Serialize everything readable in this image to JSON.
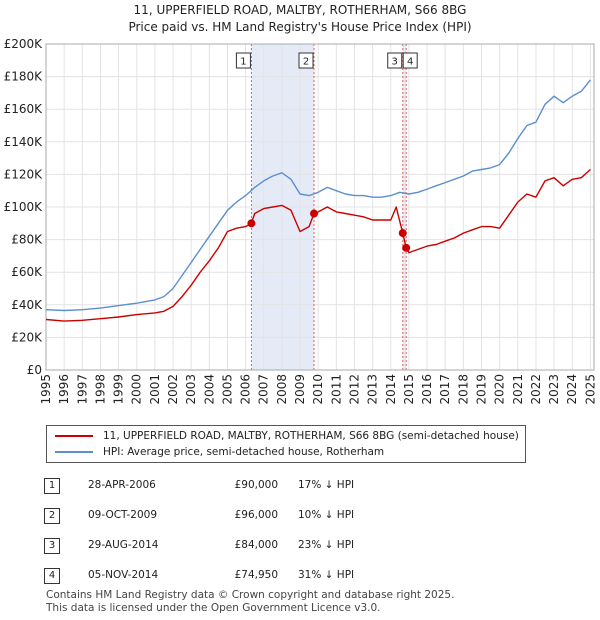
{
  "title_line1": "11, UPPERFIELD ROAD, MALTBY, ROTHERHAM, S66 8BG",
  "title_line2": "Price paid vs. HM Land Registry's House Price Index (HPI)",
  "chart_data": {
    "type": "line",
    "ylim": [
      0,
      200000
    ],
    "xlim": [
      1995,
      2025.2
    ],
    "y_ticks": [
      0,
      20000,
      40000,
      60000,
      80000,
      100000,
      120000,
      140000,
      160000,
      180000,
      200000
    ],
    "y_tick_labels": [
      "£0",
      "£20K",
      "£40K",
      "£60K",
      "£80K",
      "£100K",
      "£120K",
      "£140K",
      "£160K",
      "£180K",
      "£200K"
    ],
    "x_ticks": [
      1995,
      1996,
      1997,
      1998,
      1999,
      2000,
      2001,
      2002,
      2003,
      2004,
      2005,
      2006,
      2007,
      2008,
      2009,
      2010,
      2011,
      2012,
      2013,
      2014,
      2015,
      2016,
      2017,
      2018,
      2019,
      2020,
      2021,
      2022,
      2023,
      2024,
      2025
    ],
    "x_tick_labels": [
      "1995",
      "1996",
      "1997",
      "1998",
      "1999",
      "2000",
      "2001",
      "2002",
      "2003",
      "2004",
      "2005",
      "2006",
      "2007",
      "2008",
      "2009",
      "2010",
      "2011",
      "2012",
      "2013",
      "2014",
      "2015",
      "2016",
      "2017",
      "2018",
      "2019",
      "2020",
      "2021",
      "2022",
      "2023",
      "2024",
      "2025"
    ],
    "grid": true,
    "series": [
      {
        "name": "11, UPPERFIELD ROAD, MALTBY, ROTHERHAM, S66 8BG (semi-detached house)",
        "color": "#cc0000",
        "x": [
          1995.0,
          1996.0,
          1997.0,
          1998.0,
          1999.0,
          2000.0,
          2001.0,
          2001.5,
          2002.0,
          2002.5,
          2003.0,
          2003.5,
          2004.0,
          2004.5,
          2005.0,
          2005.5,
          2006.0,
          2006.32,
          2006.5,
          2007.0,
          2007.5,
          2008.0,
          2008.5,
          2009.0,
          2009.5,
          2009.77,
          2010.0,
          2010.5,
          2011.0,
          2011.5,
          2012.0,
          2012.5,
          2013.0,
          2013.5,
          2014.0,
          2014.3,
          2014.66,
          2014.85,
          2015.0,
          2015.5,
          2016.0,
          2016.5,
          2017.0,
          2017.5,
          2018.0,
          2018.5,
          2019.0,
          2019.5,
          2020.0,
          2020.5,
          2021.0,
          2021.5,
          2022.0,
          2022.5,
          2023.0,
          2023.5,
          2024.0,
          2024.5,
          2025.0
        ],
        "y": [
          31000,
          30000,
          30500,
          31500,
          32500,
          34000,
          35000,
          36000,
          39000,
          45000,
          52000,
          60000,
          67000,
          75000,
          85000,
          87000,
          88000,
          90000,
          96000,
          99000,
          100000,
          101000,
          98000,
          85000,
          88000,
          96000,
          97000,
          100000,
          97000,
          96000,
          95000,
          94000,
          92000,
          92000,
          92000,
          100000,
          84000,
          74950,
          72000,
          74000,
          76000,
          77000,
          79000,
          81000,
          84000,
          86000,
          88000,
          88000,
          87000,
          95000,
          103000,
          108000,
          106000,
          116000,
          118000,
          113000,
          117000,
          118000,
          123000
        ]
      },
      {
        "name": "HPI: Average price, semi-detached house, Rotherham",
        "color": "#5b8fd0",
        "x": [
          1995.0,
          1996.0,
          1997.0,
          1998.0,
          1999.0,
          2000.0,
          2001.0,
          2001.5,
          2002.0,
          2002.5,
          2003.0,
          2003.5,
          2004.0,
          2004.5,
          2005.0,
          2005.5,
          2006.0,
          2006.5,
          2007.0,
          2007.5,
          2008.0,
          2008.5,
          2009.0,
          2009.5,
          2010.0,
          2010.5,
          2011.0,
          2011.5,
          2012.0,
          2012.5,
          2013.0,
          2013.5,
          2014.0,
          2014.5,
          2015.0,
          2015.5,
          2016.0,
          2016.5,
          2017.0,
          2017.5,
          2018.0,
          2018.5,
          2019.0,
          2019.5,
          2020.0,
          2020.5,
          2021.0,
          2021.5,
          2022.0,
          2022.5,
          2023.0,
          2023.5,
          2024.0,
          2024.5,
          2025.0
        ],
        "y": [
          37000,
          36500,
          37000,
          38000,
          39500,
          41000,
          43000,
          45000,
          50000,
          58000,
          66000,
          74000,
          82000,
          90000,
          98000,
          103000,
          107000,
          112000,
          116000,
          119000,
          121000,
          117000,
          108000,
          107000,
          109000,
          112000,
          110000,
          108000,
          107000,
          107000,
          106000,
          106000,
          107000,
          109000,
          108000,
          109000,
          111000,
          113000,
          115000,
          117000,
          119000,
          122000,
          123000,
          124000,
          126000,
          133000,
          142000,
          150000,
          152000,
          163000,
          168000,
          164000,
          168000,
          171000,
          178000
        ]
      }
    ],
    "sales": [
      {
        "label": "1",
        "x": 2006.32,
        "y": 90000
      },
      {
        "label": "2",
        "x": 2009.77,
        "y": 96000
      },
      {
        "label": "3",
        "x": 2014.66,
        "y": 84000
      },
      {
        "label": "4",
        "x": 2014.85,
        "y": 74950
      }
    ]
  },
  "legend": {
    "property": "11, UPPERFIELD ROAD, MALTBY, ROTHERHAM, S66 8BG (semi-detached house)",
    "hpi": "HPI: Average price, semi-detached house, Rotherham"
  },
  "transactions": [
    {
      "num": "1",
      "date": "28-APR-2006",
      "price": "£90,000",
      "hpi": "17% ↓ HPI"
    },
    {
      "num": "2",
      "date": "09-OCT-2009",
      "price": "£96,000",
      "hpi": "10% ↓ HPI"
    },
    {
      "num": "3",
      "date": "29-AUG-2014",
      "price": "£84,000",
      "hpi": "23% ↓ HPI"
    },
    {
      "num": "4",
      "date": "05-NOV-2014",
      "price": "£74,950",
      "hpi": "31% ↓ HPI"
    }
  ],
  "footer_line1": "Contains HM Land Registry data © Crown copyright and database right 2025.",
  "footer_line2": "This data is licensed under the Open Government Licence v3.0."
}
